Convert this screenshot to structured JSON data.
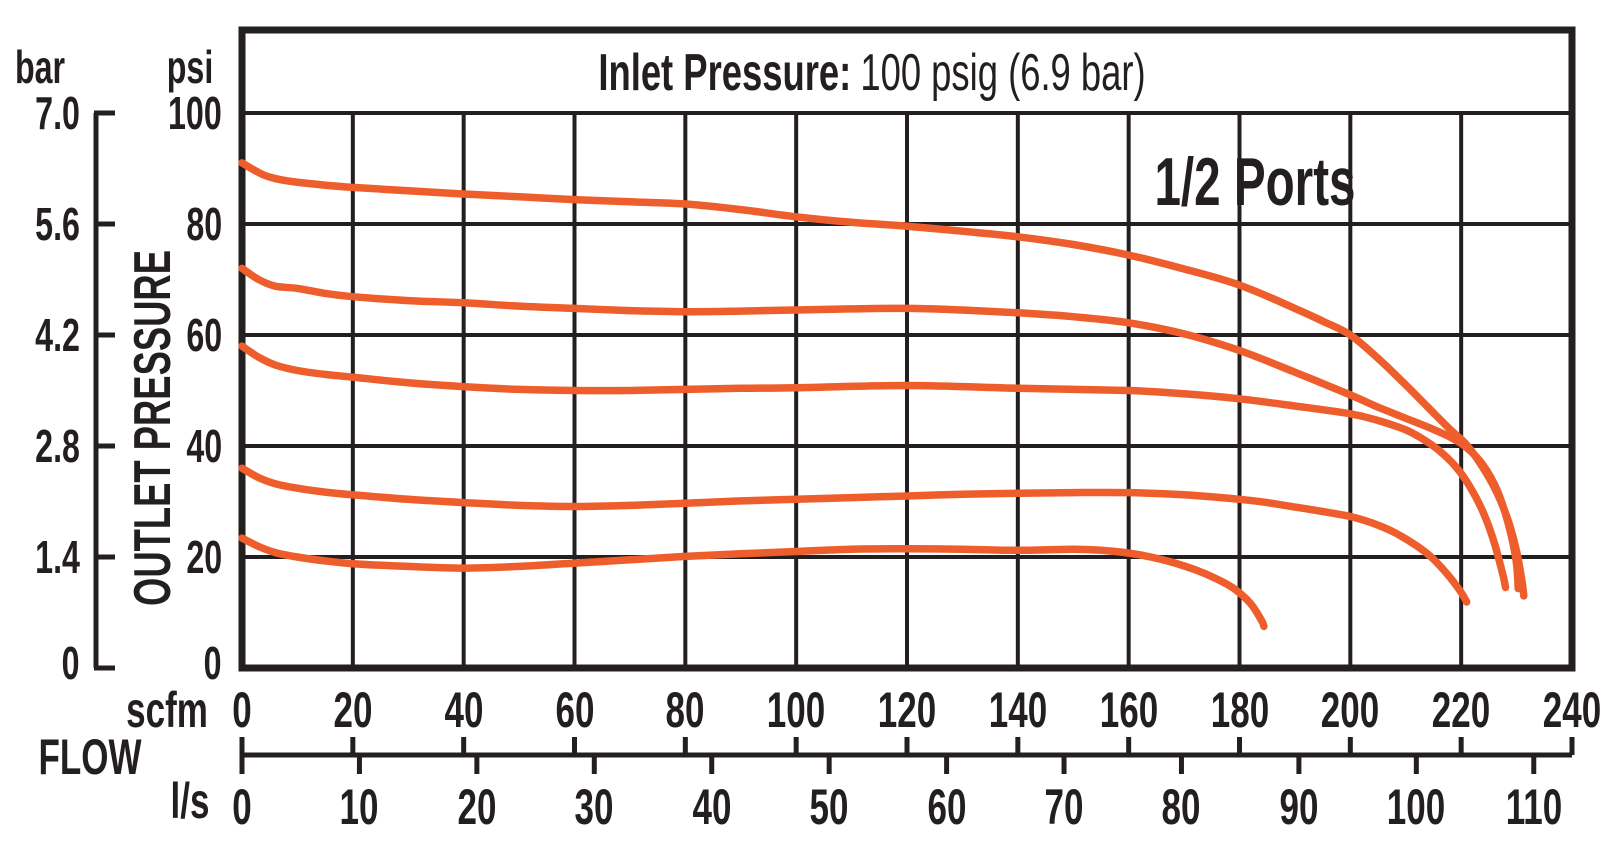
{
  "title": {
    "label": "Inlet Pressure:",
    "value": "100 psig (6.9 bar)"
  },
  "ports_label": "1/2 Ports",
  "colors": {
    "curve": "#EE5E2C",
    "grid": "#231F20",
    "text": "#231F20",
    "background": "#FFFFFF"
  },
  "y_axis": {
    "bar_unit": "bar",
    "psi_unit": "psi",
    "axis_title": "OUTLET PRESSURE",
    "bar_ticks": [
      "7.0",
      "5.6",
      "4.2",
      "2.8",
      "1.4",
      "0"
    ],
    "psi_ticks": [
      "100",
      "80",
      "60",
      "40",
      "20",
      "0"
    ]
  },
  "x_axis": {
    "axis_title": "FLOW",
    "scfm_unit": "scfm",
    "ls_unit": "l/s",
    "scfm_ticks": [
      "0",
      "20",
      "40",
      "60",
      "80",
      "100",
      "120",
      "140",
      "160",
      "180",
      "200",
      "220",
      "240"
    ],
    "ls_ticks": [
      "0",
      "10",
      "20",
      "30",
      "40",
      "50",
      "60",
      "70",
      "80",
      "90",
      "100",
      "110"
    ]
  },
  "chart_data": {
    "type": "line",
    "title": "Inlet Pressure: 100 psig (6.9 bar)",
    "annotation": "1/2 Ports",
    "xlabel": "FLOW",
    "ylabel": "OUTLET PRESSURE",
    "grid": true,
    "legend": "none",
    "x_axes": [
      {
        "unit": "scfm",
        "range": [
          0,
          240
        ],
        "tick_step": 20
      },
      {
        "unit": "l/s",
        "range": [
          0,
          110
        ],
        "tick_step": 10
      }
    ],
    "y_axes": [
      {
        "unit": "psi",
        "range": [
          0,
          100
        ],
        "tick_step": 20
      },
      {
        "unit": "bar",
        "range": [
          0,
          7.0
        ],
        "tick_step": 1.4
      }
    ],
    "series": [
      {
        "name": "curve-1-start-91-psi",
        "x_unit": "scfm",
        "y_unit": "psi",
        "points": [
          [
            0,
            91
          ],
          [
            4,
            88.8
          ],
          [
            8,
            87.8
          ],
          [
            14,
            87.1
          ],
          [
            20,
            86.6
          ],
          [
            30,
            86
          ],
          [
            40,
            85.4
          ],
          [
            50,
            84.9
          ],
          [
            60,
            84.4
          ],
          [
            70,
            84
          ],
          [
            80,
            83.6
          ],
          [
            90,
            82.6
          ],
          [
            100,
            81.3
          ],
          [
            110,
            80.3
          ],
          [
            120,
            79.6
          ],
          [
            130,
            78.7
          ],
          [
            140,
            77.7
          ],
          [
            150,
            76.3
          ],
          [
            160,
            74.4
          ],
          [
            170,
            71.9
          ],
          [
            180,
            69
          ],
          [
            190,
            64.8
          ],
          [
            195,
            62.5
          ],
          [
            200,
            60
          ],
          [
            205,
            55.8
          ],
          [
            210,
            51
          ],
          [
            214,
            47
          ],
          [
            218,
            43
          ],
          [
            221,
            40.2
          ],
          [
            224,
            36
          ],
          [
            226.5,
            31.5
          ],
          [
            228.5,
            26.5
          ],
          [
            230,
            21
          ],
          [
            231,
            15.5
          ],
          [
            231.3,
            13
          ]
        ]
      },
      {
        "name": "curve-2-start-72-psi",
        "x_unit": "scfm",
        "y_unit": "psi",
        "points": [
          [
            0,
            72
          ],
          [
            3,
            70
          ],
          [
            6,
            68.8
          ],
          [
            10,
            68.4
          ],
          [
            15,
            67.5
          ],
          [
            20,
            66.9
          ],
          [
            30,
            66.2
          ],
          [
            40,
            65.8
          ],
          [
            50,
            65.2
          ],
          [
            60,
            64.8
          ],
          [
            70,
            64.4
          ],
          [
            80,
            64.2
          ],
          [
            90,
            64.3
          ],
          [
            100,
            64.5
          ],
          [
            110,
            64.7
          ],
          [
            120,
            64.8
          ],
          [
            130,
            64.5
          ],
          [
            140,
            64
          ],
          [
            150,
            63.3
          ],
          [
            160,
            62.2
          ],
          [
            170,
            60.2
          ],
          [
            180,
            57.2
          ],
          [
            190,
            53.3
          ],
          [
            200,
            49.2
          ],
          [
            205,
            47
          ],
          [
            210,
            45
          ],
          [
            214,
            43.4
          ],
          [
            218,
            41.6
          ],
          [
            221,
            39.7
          ],
          [
            224,
            36.5
          ],
          [
            226.5,
            32
          ],
          [
            228.5,
            26
          ],
          [
            229.9,
            19.5
          ],
          [
            230.3,
            14.3
          ]
        ]
      },
      {
        "name": "curve-3-start-58-psi",
        "x_unit": "scfm",
        "y_unit": "psi",
        "points": [
          [
            0,
            58
          ],
          [
            3,
            56
          ],
          [
            6,
            54.6
          ],
          [
            10,
            53.6
          ],
          [
            15,
            52.9
          ],
          [
            20,
            52.4
          ],
          [
            30,
            51.4
          ],
          [
            40,
            50.7
          ],
          [
            50,
            50.2
          ],
          [
            60,
            50
          ],
          [
            70,
            50
          ],
          [
            80,
            50.2
          ],
          [
            90,
            50.4
          ],
          [
            100,
            50.5
          ],
          [
            120,
            50.9
          ],
          [
            140,
            50.4
          ],
          [
            160,
            50
          ],
          [
            170,
            49.4
          ],
          [
            180,
            48.5
          ],
          [
            190,
            47.2
          ],
          [
            200,
            45.8
          ],
          [
            205,
            44.6
          ],
          [
            210,
            42.9
          ],
          [
            213,
            41.3
          ],
          [
            216,
            39.2
          ],
          [
            219,
            36.3
          ],
          [
            221.5,
            32.8
          ],
          [
            224,
            28
          ],
          [
            226,
            22.5
          ],
          [
            227.6,
            16.5
          ],
          [
            228,
            14.5
          ]
        ]
      },
      {
        "name": "curve-4-start-36-psi",
        "x_unit": "scfm",
        "y_unit": "psi",
        "points": [
          [
            0,
            36
          ],
          [
            3,
            34.3
          ],
          [
            6,
            33.2
          ],
          [
            10,
            32.4
          ],
          [
            15,
            31.7
          ],
          [
            20,
            31.2
          ],
          [
            30,
            30.4
          ],
          [
            40,
            29.8
          ],
          [
            50,
            29.3
          ],
          [
            60,
            29.1
          ],
          [
            70,
            29.3
          ],
          [
            80,
            29.7
          ],
          [
            90,
            30.1
          ],
          [
            100,
            30.4
          ],
          [
            110,
            30.7
          ],
          [
            120,
            31
          ],
          [
            130,
            31.3
          ],
          [
            140,
            31.5
          ],
          [
            150,
            31.6
          ],
          [
            160,
            31.6
          ],
          [
            170,
            31.2
          ],
          [
            180,
            30.4
          ],
          [
            185,
            29.8
          ],
          [
            190,
            29
          ],
          [
            195,
            28.2
          ],
          [
            200,
            27.3
          ],
          [
            204,
            26.1
          ],
          [
            208,
            24.4
          ],
          [
            212,
            22
          ],
          [
            215,
            19.6
          ],
          [
            218,
            16.3
          ],
          [
            220,
            13.6
          ],
          [
            221,
            11.9
          ]
        ]
      },
      {
        "name": "curve-5-start-23-psi",
        "x_unit": "scfm",
        "y_unit": "psi",
        "points": [
          [
            0,
            23.4
          ],
          [
            3,
            21.9
          ],
          [
            6,
            20.8
          ],
          [
            10,
            20
          ],
          [
            15,
            19.3
          ],
          [
            20,
            18.8
          ],
          [
            30,
            18.3
          ],
          [
            40,
            18
          ],
          [
            50,
            18.3
          ],
          [
            60,
            18.9
          ],
          [
            70,
            19.5
          ],
          [
            80,
            20.1
          ],
          [
            90,
            20.6
          ],
          [
            100,
            21
          ],
          [
            110,
            21.4
          ],
          [
            120,
            21.5
          ],
          [
            130,
            21.4
          ],
          [
            140,
            21.2
          ],
          [
            150,
            21.4
          ],
          [
            155,
            21.2
          ],
          [
            160,
            20.7
          ],
          [
            164,
            20
          ],
          [
            168,
            19
          ],
          [
            172,
            17.7
          ],
          [
            176,
            16
          ],
          [
            179,
            14.3
          ],
          [
            182,
            11.6
          ],
          [
            184,
            8.5
          ],
          [
            184.4,
            7.5
          ]
        ]
      }
    ]
  }
}
